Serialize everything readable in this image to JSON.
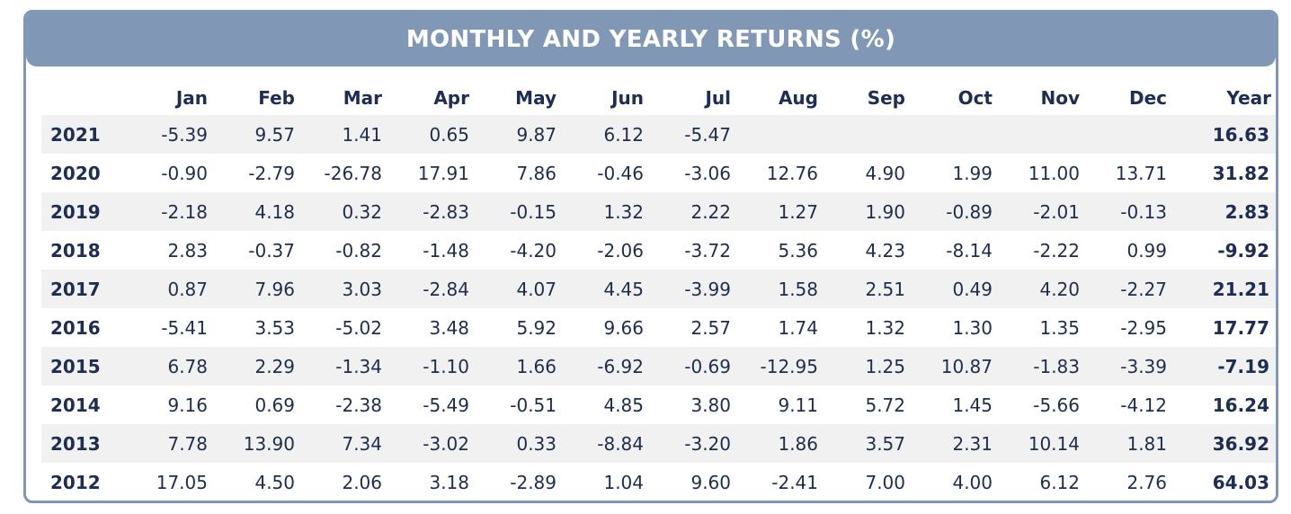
{
  "title": "MONTHLY AND YEARLY RETURNS (%)",
  "columns": [
    "Jan",
    "Feb",
    "Mar",
    "Apr",
    "May",
    "Jun",
    "Jul",
    "Aug",
    "Sep",
    "Oct",
    "Nov",
    "Dec",
    "Year"
  ],
  "rows": [
    {
      "year": "2021",
      "months": [
        "-5.39",
        "9.57",
        "1.41",
        "0.65",
        "9.87",
        "6.12",
        "-5.47",
        "",
        "",
        "",
        "",
        ""
      ],
      "total": "16.63"
    },
    {
      "year": "2020",
      "months": [
        "-0.90",
        "-2.79",
        "-26.78",
        "17.91",
        "7.86",
        "-0.46",
        "-3.06",
        "12.76",
        "4.90",
        "1.99",
        "11.00",
        "13.71"
      ],
      "total": "31.82"
    },
    {
      "year": "2019",
      "months": [
        "-2.18",
        "4.18",
        "0.32",
        "-2.83",
        "-0.15",
        "1.32",
        "2.22",
        "1.27",
        "1.90",
        "-0.89",
        "-2.01",
        "-0.13"
      ],
      "total": "2.83"
    },
    {
      "year": "2018",
      "months": [
        "2.83",
        "-0.37",
        "-0.82",
        "-1.48",
        "-4.20",
        "-2.06",
        "-3.72",
        "5.36",
        "4.23",
        "-8.14",
        "-2.22",
        "0.99"
      ],
      "total": "-9.92"
    },
    {
      "year": "2017",
      "months": [
        "0.87",
        "7.96",
        "3.03",
        "-2.84",
        "4.07",
        "4.45",
        "-3.99",
        "1.58",
        "2.51",
        "0.49",
        "4.20",
        "-2.27"
      ],
      "total": "21.21"
    },
    {
      "year": "2016",
      "months": [
        "-5.41",
        "3.53",
        "-5.02",
        "3.48",
        "5.92",
        "9.66",
        "2.57",
        "1.74",
        "1.32",
        "1.30",
        "1.35",
        "-2.95"
      ],
      "total": "17.77"
    },
    {
      "year": "2015",
      "months": [
        "6.78",
        "2.29",
        "-1.34",
        "-1.10",
        "1.66",
        "-6.92",
        "-0.69",
        "-12.95",
        "1.25",
        "10.87",
        "-1.83",
        "-3.39"
      ],
      "total": "-7.19"
    },
    {
      "year": "2014",
      "months": [
        "9.16",
        "0.69",
        "-2.38",
        "-5.49",
        "-0.51",
        "4.85",
        "3.80",
        "9.11",
        "5.72",
        "1.45",
        "-5.66",
        "-4.12"
      ],
      "total": "16.24"
    },
    {
      "year": "2013",
      "months": [
        "7.78",
        "13.90",
        "7.34",
        "-3.02",
        "0.33",
        "-8.84",
        "-3.20",
        "1.86",
        "3.57",
        "2.31",
        "10.14",
        "1.81"
      ],
      "total": "36.92"
    },
    {
      "year": "2012",
      "months": [
        "17.05",
        "4.50",
        "2.06",
        "3.18",
        "-2.89",
        "1.04",
        "9.60",
        "-2.41",
        "7.00",
        "4.00",
        "6.12",
        "2.76"
      ],
      "total": "64.03"
    }
  ],
  "colors": {
    "accent": "#8098b6",
    "text_dark": "#1e2d55",
    "stripe": "#f1f1f1"
  }
}
